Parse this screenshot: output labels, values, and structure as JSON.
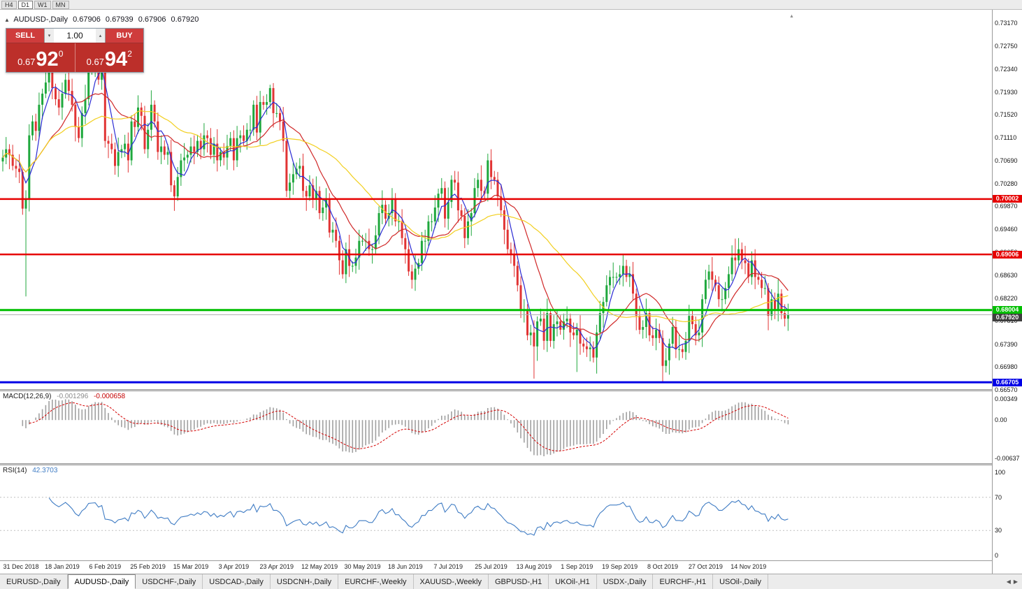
{
  "toolbar": {
    "timeframes": [
      "H4",
      "D1",
      "W1",
      "MN"
    ],
    "active": "D1"
  },
  "chart": {
    "header": {
      "symbol": "AUDUSD-,Daily",
      "open": "0.67906",
      "high": "0.67939",
      "low": "0.67906",
      "close": "0.67920"
    },
    "trade_panel": {
      "sell_label": "SELL",
      "buy_label": "BUY",
      "volume": "1.00",
      "bid_small": "0.67",
      "bid_big": "92",
      "bid_sup": "0",
      "ask_small": "0.67",
      "ask_big": "94",
      "ask_sup": "2"
    }
  },
  "chart_data": {
    "type": "candlestick",
    "symbol": "AUDUSD-",
    "timeframe": "Daily",
    "price_axis_labels": [
      "0.73170",
      "0.72750",
      "0.72340",
      "0.71930",
      "0.71520",
      "0.71110",
      "0.70690",
      "0.70280",
      "0.69870",
      "0.69460",
      "0.69050",
      "0.68630",
      "0.68220",
      "0.67810",
      "0.67390",
      "0.66980",
      "0.66570"
    ],
    "price_ylim": [
      0.6658,
      0.7341
    ],
    "x_labels": [
      {
        "text": "31 Dec 2018",
        "day": 5
      },
      {
        "text": "18 Jan 2019",
        "day": 18
      },
      {
        "text": "6 Feb 2019",
        "day": 31
      },
      {
        "text": "25 Feb 2019",
        "day": 44
      },
      {
        "text": "15 Mar 2019",
        "day": 57
      },
      {
        "text": "3 Apr 2019",
        "day": 70
      },
      {
        "text": "23 Apr 2019",
        "day": 83
      },
      {
        "text": "12 May 2019",
        "day": 96
      },
      {
        "text": "30 May 2019",
        "day": 109
      },
      {
        "text": "18 Jun 2019",
        "day": 122
      },
      {
        "text": "7 Jul 2019",
        "day": 135
      },
      {
        "text": "25 Jul 2019",
        "day": 148
      },
      {
        "text": "13 Aug 2019",
        "day": 161
      },
      {
        "text": "1 Sep 2019",
        "day": 174
      },
      {
        "text": "19 Sep 2019",
        "day": 187
      },
      {
        "text": "8 Oct 2019",
        "day": 200
      },
      {
        "text": "27 Oct 2019",
        "day": 213
      },
      {
        "text": "14 Nov 2019",
        "day": 226
      }
    ],
    "hlines": [
      {
        "price": 0.70002,
        "badge": "0.70002",
        "color": "#e60000",
        "width": 2.5
      },
      {
        "price": 0.69006,
        "badge": "0.69006",
        "color": "#e60000",
        "width": 2.5
      },
      {
        "price": 0.68004,
        "badge": "0.68004",
        "color": "#00bf00",
        "width": 3
      },
      {
        "price": 0.66705,
        "badge": "0.66705",
        "color": "#0000e6",
        "width": 3
      }
    ],
    "current_price": {
      "value": 0.6792,
      "label": "0.67920",
      "line_color": "#b0b0b0",
      "badge_color": "#3f3f3f"
    },
    "candles": {
      "up_color": "#1fa83d",
      "down_color": "#e13434",
      "first_open": 0.7068,
      "wick_pattern": [
        14,
        22,
        9,
        18,
        12,
        26,
        8,
        16,
        20,
        11
      ],
      "closes": [
        0.7075,
        0.709,
        0.708,
        0.706,
        0.7055,
        0.7049,
        0.6983,
        0.7,
        0.7115,
        0.714,
        0.7123,
        0.717,
        0.719,
        0.721,
        0.723,
        0.72,
        0.718,
        0.7165,
        0.719,
        0.7215,
        0.7195,
        0.717,
        0.713,
        0.711,
        0.7155,
        0.718,
        0.7238,
        0.7242,
        0.7246,
        0.7215,
        0.7232,
        0.7105,
        0.71,
        0.709,
        0.706,
        0.7085,
        0.709,
        0.71,
        0.707,
        0.714,
        0.713,
        0.7165,
        0.715,
        0.709,
        0.7125,
        0.717,
        0.714,
        0.7085,
        0.7095,
        0.708,
        0.7085,
        0.7025,
        0.7005,
        0.704,
        0.707,
        0.7075,
        0.708,
        0.7095,
        0.7085,
        0.7105,
        0.709,
        0.7115,
        0.711,
        0.708,
        0.71,
        0.707,
        0.7085,
        0.7075,
        0.7096,
        0.711,
        0.707,
        0.711,
        0.7115,
        0.7105,
        0.7125,
        0.7125,
        0.717,
        0.712,
        0.7175,
        0.717,
        0.7175,
        0.72,
        0.7155,
        0.7155,
        0.714,
        0.7105,
        0.7015,
        0.703,
        0.7045,
        0.7055,
        0.706,
        0.7015,
        0.7005,
        0.7025,
        0.7,
        0.7015,
        0.6975,
        0.6985,
        0.7,
        0.694,
        0.6945,
        0.6925,
        0.689,
        0.6865,
        0.691,
        0.688,
        0.688,
        0.6895,
        0.6925,
        0.6925,
        0.6925,
        0.691,
        0.691,
        0.6935,
        0.6975,
        0.699,
        0.6965,
        0.6975,
        0.7,
        0.696,
        0.696,
        0.693,
        0.691,
        0.687,
        0.6855,
        0.6875,
        0.6885,
        0.6925,
        0.6925,
        0.696,
        0.696,
        0.6985,
        0.701,
        0.702,
        0.6965,
        0.6995,
        0.7035,
        0.703,
        0.698,
        0.697,
        0.693,
        0.696,
        0.6975,
        0.702,
        0.7035,
        0.7015,
        0.701,
        0.707,
        0.704,
        0.7035,
        0.7005,
        0.698,
        0.6945,
        0.691,
        0.69,
        0.688,
        0.6845,
        0.68,
        0.68,
        0.6755,
        0.676,
        0.6735,
        0.678,
        0.6785,
        0.6745,
        0.6795,
        0.6745,
        0.6775,
        0.678,
        0.6765,
        0.678,
        0.6785,
        0.676,
        0.6755,
        0.6765,
        0.674,
        0.6735,
        0.673,
        0.6733,
        0.6715,
        0.676,
        0.6795,
        0.6815,
        0.6845,
        0.686,
        0.686,
        0.686,
        0.6865,
        0.688,
        0.686,
        0.6865,
        0.683,
        0.679,
        0.6765,
        0.677,
        0.6795,
        0.6755,
        0.675,
        0.6765,
        0.675,
        0.67,
        0.671,
        0.674,
        0.677,
        0.673,
        0.673,
        0.6725,
        0.6745,
        0.679,
        0.6775,
        0.6755,
        0.676,
        0.682,
        0.6855,
        0.687,
        0.6855,
        0.6845,
        0.682,
        0.682,
        0.684,
        0.6865,
        0.6895,
        0.689,
        0.691,
        0.689,
        0.6885,
        0.686,
        0.689,
        0.686,
        0.6855,
        0.684,
        0.684,
        0.679,
        0.682,
        0.68,
        0.683,
        0.6795,
        0.6785,
        0.6792
      ],
      "overrides": [
        {
          "day": 7,
          "low": 0.6825
        },
        {
          "day": 14,
          "high": 0.7246
        },
        {
          "day": 28,
          "high": 0.7258
        },
        {
          "day": 81,
          "high": 0.7206
        },
        {
          "day": 147,
          "high": 0.7082
        },
        {
          "day": 161,
          "low": 0.6677
        },
        {
          "day": 174,
          "low": 0.6689
        },
        {
          "day": 180,
          "low": 0.6686
        },
        {
          "day": 200,
          "low": 0.6671
        },
        {
          "day": 222,
          "high": 0.6929
        },
        {
          "day": 223,
          "high": 0.693
        }
      ]
    },
    "moving_averages": [
      {
        "period": 5,
        "color": "#2b2bd4"
      },
      {
        "period": 15,
        "color": "#d02828"
      },
      {
        "period": 34,
        "color": "#f2cf1f"
      }
    ],
    "macd": {
      "label": "MACD(12,26,9)",
      "value_main": "-0.001296",
      "value_signal": "-0.000658",
      "fast": 12,
      "slow": 26,
      "signal": 9,
      "axis_labels": [
        "0.00349",
        "0.00",
        "-0.00637"
      ],
      "ylim": [
        -0.0072,
        0.0048
      ],
      "hist_color": "#a0a0a0",
      "signal_color": "#d40000"
    },
    "rsi": {
      "label": "RSI(14)",
      "value": "42.3703",
      "period": 14,
      "axis_labels": [
        "100",
        "70",
        "30",
        "0"
      ],
      "levels": [
        70,
        30
      ],
      "line_color": "#3f7cc4",
      "level_color": "#c0c0c0"
    }
  },
  "tabs": {
    "items": [
      "EURUSD-,Daily",
      "AUDUSD-,Daily",
      "USDCHF-,Daily",
      "USDCAD-,Daily",
      "USDCNH-,Daily",
      "EURCHF-,Weekly",
      "XAUUSD-,Weekly",
      "GBPUSD-,H1",
      "UKOil-,H1",
      "USDX-,Daily",
      "EURCHF-,H1",
      "USOil-,Daily"
    ],
    "active": "AUDUSD-,Daily"
  }
}
